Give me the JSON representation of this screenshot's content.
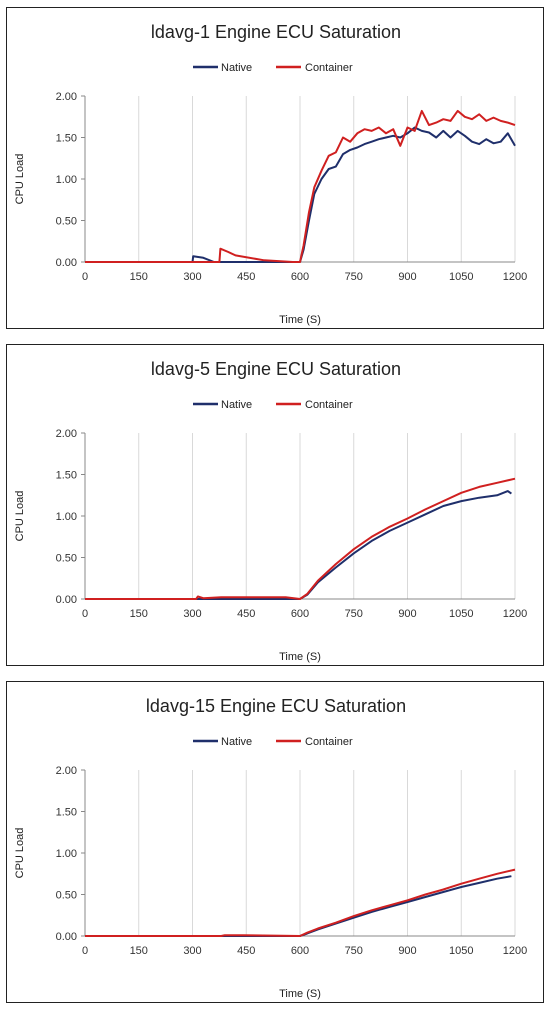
{
  "chart_data": [
    {
      "type": "line",
      "title": "ldavg-1 Engine ECU Saturation",
      "xlabel": "Time (S)",
      "ylabel": "CPU Load",
      "xlim": [
        0,
        1200
      ],
      "ylim": [
        0,
        2
      ],
      "x_ticks": [
        "0",
        "150",
        "300",
        "450",
        "600",
        "750",
        "900",
        "1050",
        "1200"
      ],
      "y_ticks": [
        "0.00",
        "0.50",
        "1.00",
        "1.50",
        "2.00"
      ],
      "grid": "vertical",
      "legend": "top-center",
      "series": [
        {
          "name": "Native",
          "color": "#1f2f6b",
          "x": [
            0,
            300,
            302,
            330,
            360,
            600,
            610,
            625,
            640,
            660,
            680,
            700,
            720,
            740,
            760,
            780,
            800,
            820,
            840,
            860,
            880,
            900,
            920,
            940,
            960,
            980,
            1000,
            1020,
            1040,
            1060,
            1080,
            1100,
            1120,
            1140,
            1160,
            1180,
            1200
          ],
          "y": [
            0,
            0,
            0.07,
            0.05,
            0,
            0,
            0.15,
            0.5,
            0.82,
            1.0,
            1.12,
            1.15,
            1.3,
            1.35,
            1.38,
            1.42,
            1.45,
            1.48,
            1.5,
            1.52,
            1.5,
            1.55,
            1.62,
            1.58,
            1.56,
            1.5,
            1.58,
            1.5,
            1.58,
            1.52,
            1.45,
            1.42,
            1.48,
            1.43,
            1.45,
            1.55,
            1.4
          ]
        },
        {
          "name": "Container",
          "color": "#d02020",
          "x": [
            0,
            375,
            378,
            400,
            420,
            500,
            580,
            600,
            610,
            625,
            640,
            660,
            680,
            700,
            720,
            740,
            760,
            780,
            800,
            820,
            840,
            860,
            880,
            900,
            920,
            940,
            960,
            980,
            1000,
            1020,
            1040,
            1060,
            1080,
            1100,
            1120,
            1140,
            1160,
            1180,
            1200
          ],
          "y": [
            0,
            0,
            0.16,
            0.12,
            0.08,
            0.02,
            0,
            0,
            0.2,
            0.6,
            0.9,
            1.1,
            1.28,
            1.32,
            1.5,
            1.45,
            1.55,
            1.6,
            1.58,
            1.62,
            1.55,
            1.6,
            1.4,
            1.62,
            1.58,
            1.82,
            1.65,
            1.68,
            1.72,
            1.7,
            1.82,
            1.75,
            1.72,
            1.78,
            1.7,
            1.74,
            1.7,
            1.68,
            1.65
          ]
        }
      ]
    },
    {
      "type": "line",
      "title": "ldavg-5 Engine ECU Saturation",
      "xlabel": "Time (S)",
      "ylabel": "CPU Load",
      "xlim": [
        0,
        1200
      ],
      "ylim": [
        0,
        2
      ],
      "x_ticks": [
        "0",
        "150",
        "300",
        "450",
        "600",
        "750",
        "900",
        "1050",
        "1200"
      ],
      "y_ticks": [
        "0.00",
        "0.50",
        "1.00",
        "1.50",
        "2.00"
      ],
      "grid": "vertical",
      "legend": "top-center",
      "series": [
        {
          "name": "Native",
          "color": "#1f2f6b",
          "x": [
            0,
            600,
            620,
            650,
            700,
            750,
            800,
            850,
            900,
            950,
            1000,
            1050,
            1100,
            1150,
            1180,
            1190
          ],
          "y": [
            0,
            0,
            0.05,
            0.2,
            0.38,
            0.55,
            0.7,
            0.82,
            0.92,
            1.02,
            1.12,
            1.18,
            1.22,
            1.25,
            1.3,
            1.27
          ]
        },
        {
          "name": "Container",
          "color": "#d02020",
          "x": [
            0,
            310,
            315,
            330,
            380,
            560,
            600,
            620,
            650,
            700,
            750,
            800,
            850,
            900,
            950,
            1000,
            1050,
            1100,
            1150,
            1200
          ],
          "y": [
            0,
            0,
            0.03,
            0.01,
            0.02,
            0.02,
            0,
            0.06,
            0.22,
            0.42,
            0.6,
            0.75,
            0.87,
            0.97,
            1.08,
            1.18,
            1.28,
            1.35,
            1.4,
            1.45
          ]
        }
      ]
    },
    {
      "type": "line",
      "title": "ldavg-15 Engine ECU Saturation",
      "xlabel": "Time (S)",
      "ylabel": "CPU Load",
      "xlim": [
        0,
        1200
      ],
      "ylim": [
        0,
        2
      ],
      "x_ticks": [
        "0",
        "150",
        "300",
        "450",
        "600",
        "750",
        "900",
        "1050",
        "1200"
      ],
      "y_ticks": [
        "0.00",
        "0.50",
        "1.00",
        "1.50",
        "2.00"
      ],
      "grid": "vertical",
      "legend": "top-center",
      "series": [
        {
          "name": "Native",
          "color": "#1f2f6b",
          "x": [
            0,
            600,
            620,
            650,
            700,
            750,
            800,
            850,
            900,
            950,
            1000,
            1050,
            1100,
            1150,
            1190
          ],
          "y": [
            0,
            0,
            0.03,
            0.08,
            0.15,
            0.22,
            0.29,
            0.35,
            0.41,
            0.47,
            0.53,
            0.59,
            0.64,
            0.69,
            0.72
          ]
        },
        {
          "name": "Container",
          "color": "#d02020",
          "x": [
            0,
            380,
            390,
            440,
            600,
            620,
            650,
            700,
            750,
            800,
            850,
            900,
            950,
            1000,
            1050,
            1100,
            1150,
            1200
          ],
          "y": [
            0,
            0,
            0.01,
            0.01,
            0,
            0.04,
            0.09,
            0.16,
            0.24,
            0.31,
            0.37,
            0.43,
            0.5,
            0.56,
            0.63,
            0.69,
            0.75,
            0.8
          ]
        }
      ]
    }
  ]
}
